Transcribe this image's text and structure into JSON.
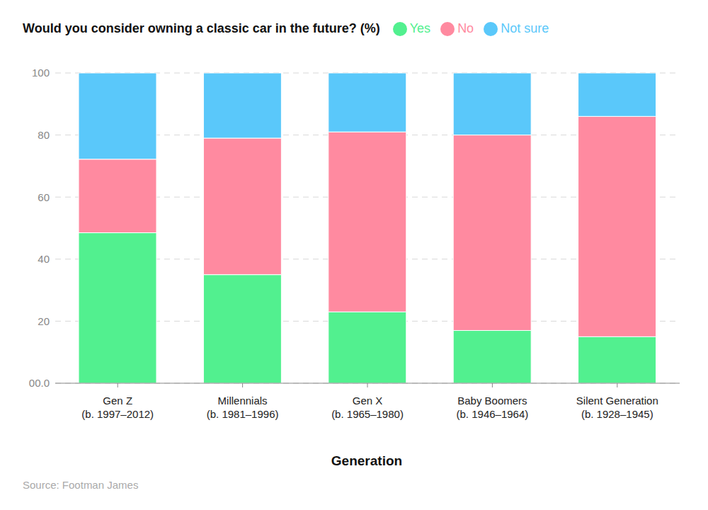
{
  "chart_data": {
    "type": "bar",
    "title": "Would you consider owning a classic car in the future? (%)",
    "x_label": "Generation",
    "source": "Source: Footman James",
    "categories": [
      "Gen Z\n(b. 1997–2012)",
      "Millennials\n(b. 1981–1996)",
      "Gen X\n(b. 1965–1980)",
      "Baby Boomers\n(b. 1946–1964)",
      "Silent Generation\n(b. 1928–1945)"
    ],
    "series": [
      {
        "name": "Yes",
        "color": "#52f08f",
        "values": [
          48.5,
          35,
          23,
          17,
          15
        ]
      },
      {
        "name": "No",
        "color": "#ff8aa0",
        "values": [
          23.7,
          44,
          58,
          63,
          71
        ]
      },
      {
        "name": "Not sure",
        "color": "#5ac8fa",
        "values": [
          27.8,
          21,
          19,
          20,
          14
        ]
      }
    ],
    "stacked": true,
    "ylim": [
      0,
      100
    ],
    "yticks": [
      {
        "value": 0,
        "label": "00.0"
      },
      20,
      40,
      60,
      80,
      100
    ],
    "grid": true,
    "legend": "top"
  }
}
